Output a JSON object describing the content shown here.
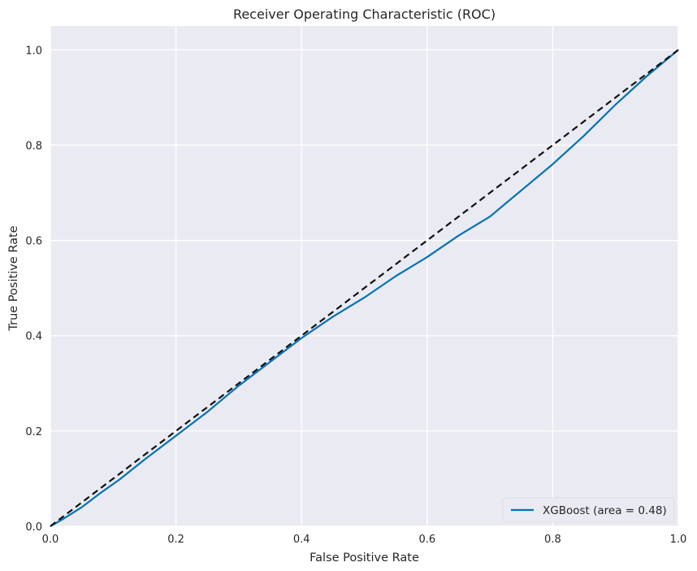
{
  "chart_data": {
    "type": "line",
    "title": "Receiver Operating Characteristic (ROC)",
    "xlabel": "False Positive Rate",
    "ylabel": "True Positive Rate",
    "xlim": [
      0.0,
      1.0
    ],
    "ylim": [
      0.0,
      1.05
    ],
    "xticks": [
      "0.0",
      "0.2",
      "0.4",
      "0.6",
      "0.8",
      "1.0"
    ],
    "yticks": [
      "0.0",
      "0.2",
      "0.4",
      "0.6",
      "0.8",
      "1.0"
    ],
    "grid": true,
    "legend_position": "lower-right",
    "series": [
      {
        "name": "XGBoost (area = 0.48)",
        "color": "#0173b2",
        "style": "solid",
        "x": [
          0.0,
          0.02,
          0.05,
          0.08,
          0.11,
          0.15,
          0.2,
          0.25,
          0.3,
          0.35,
          0.4,
          0.45,
          0.5,
          0.55,
          0.6,
          0.65,
          0.7,
          0.75,
          0.8,
          0.85,
          0.9,
          0.95,
          1.0
        ],
        "y": [
          0.0,
          0.015,
          0.04,
          0.07,
          0.098,
          0.14,
          0.19,
          0.24,
          0.295,
          0.345,
          0.395,
          0.44,
          0.48,
          0.525,
          0.565,
          0.61,
          0.65,
          0.705,
          0.76,
          0.82,
          0.885,
          0.945,
          1.0
        ]
      },
      {
        "name": "",
        "color": "#111111",
        "style": "dashed",
        "x": [
          0.0,
          1.0
        ],
        "y": [
          0.0,
          1.0
        ]
      }
    ]
  }
}
